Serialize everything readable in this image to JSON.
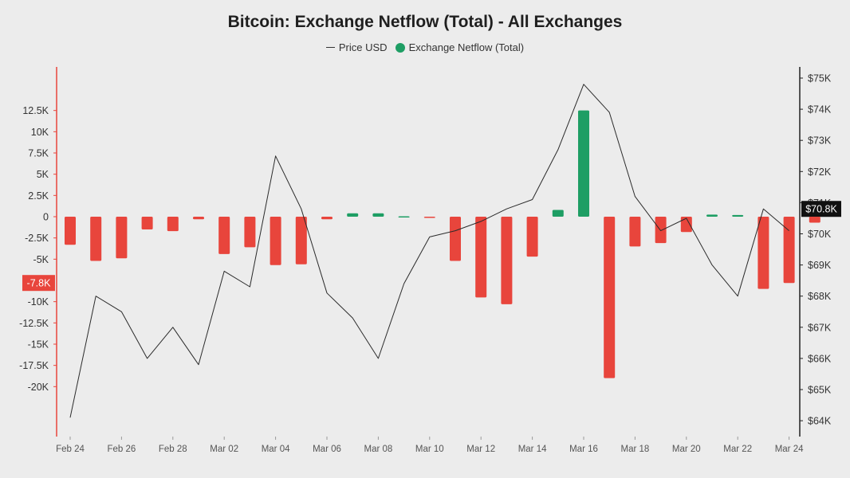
{
  "colors": {
    "negative": "#e8453c",
    "positive": "#1e9e64",
    "price_line": "#2b2b2b",
    "left_axis": "#e8453c",
    "right_axis": "#222222",
    "background": "#ececec"
  },
  "chart_data": {
    "type": "bar",
    "title": "Bitcoin: Exchange Netflow (Total) - All Exchanges",
    "legend": [
      "Price USD",
      "Exchange Netflow (Total)"
    ],
    "legend_placement": "top-center",
    "grid": false,
    "x": [
      "2024-02-24",
      "2024-02-25",
      "2024-02-26",
      "2024-02-27",
      "2024-02-28",
      "2024-02-29",
      "2024-03-01",
      "2024-03-02",
      "2024-03-03",
      "2024-03-04",
      "2024-03-05",
      "2024-03-06",
      "2024-03-07",
      "2024-03-08",
      "2024-03-09",
      "2024-03-10",
      "2024-03-11",
      "2024-03-12",
      "2024-03-13",
      "2024-03-14",
      "2024-03-15",
      "2024-03-16",
      "2024-03-17",
      "2024-03-18",
      "2024-03-19",
      "2024-03-20",
      "2024-03-21",
      "2024-03-22",
      "2024-03-23",
      "2024-03-24"
    ],
    "x_tick_labels": [
      "Feb 24",
      "Feb 26",
      "Feb 28",
      "Mar 02",
      "Mar 04",
      "Mar 06",
      "Mar 08",
      "Mar 10",
      "Mar 12",
      "Mar 14",
      "Mar 16",
      "Mar 18",
      "Mar 20",
      "Mar 22",
      "Mar 24"
    ],
    "series": [
      {
        "name": "Exchange Netflow (Total)",
        "type": "bar",
        "axis": "left",
        "values": [
          -3300,
          -5200,
          -4900,
          -1500,
          -1700,
          -300,
          -4400,
          -3600,
          -5700,
          -5600,
          -300,
          400,
          400,
          50,
          -50,
          -5200,
          -9500,
          -10300,
          -4700,
          800,
          12500,
          -19000,
          -3500,
          -3100,
          -1800,
          250,
          200,
          -8500,
          -7800,
          -700
        ]
      },
      {
        "name": "Price USD",
        "type": "line",
        "axis": "right",
        "values": [
          64100,
          68000,
          67500,
          66000,
          67000,
          65800,
          68800,
          68300,
          72500,
          70800,
          68100,
          67300,
          66000,
          68400,
          69900,
          70100,
          70400,
          70800,
          71100,
          72700,
          74800,
          73900,
          71200,
          70100,
          70500,
          69000,
          68000,
          70800,
          70100,
          null
        ]
      }
    ],
    "y_left": {
      "ylim": [
        -20000,
        12500
      ],
      "ticks": [
        "12.5K",
        "10K",
        "7.5K",
        "5K",
        "2.5K",
        "0",
        "-2.5K",
        "-5K",
        "-10K",
        "-12.5K",
        "-15K",
        "-17.5K",
        "-20K"
      ],
      "tick_values": [
        12500,
        10000,
        7500,
        5000,
        2500,
        0,
        -2500,
        -5000,
        -10000,
        -12500,
        -15000,
        -17500,
        -20000
      ],
      "highlight_label": "-7.8K",
      "highlight_value": -7800
    },
    "y_right": {
      "ylim": [
        64000,
        75000
      ],
      "ticks": [
        "$75K",
        "$74K",
        "$73K",
        "$72K",
        "$71K",
        "$70K",
        "$69K",
        "$68K",
        "$67K",
        "$66K",
        "$65K",
        "$64K"
      ],
      "tick_values": [
        75000,
        74000,
        73000,
        72000,
        71000,
        70000,
        69000,
        68000,
        67000,
        66000,
        65000,
        64000
      ],
      "highlight_label": "$70.8K",
      "highlight_value": 70800
    }
  }
}
